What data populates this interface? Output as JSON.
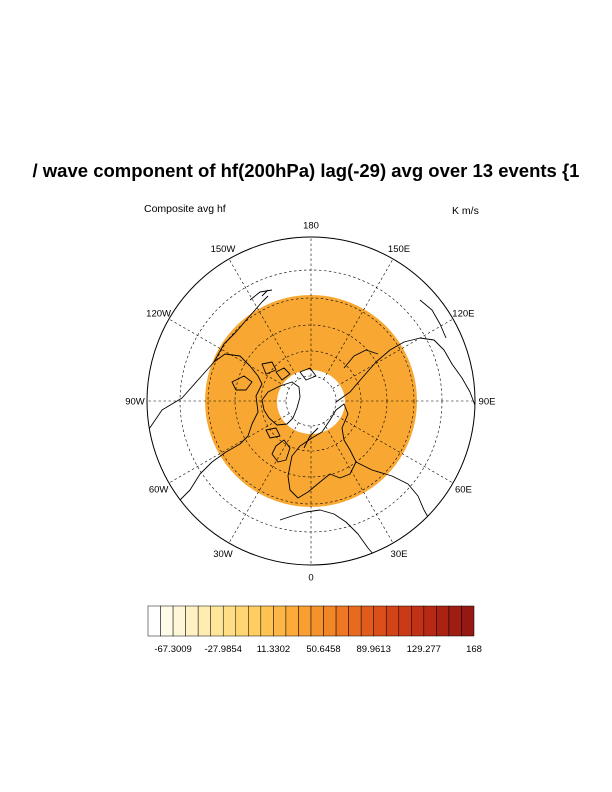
{
  "title": "/ wave component of hf(200hPa) lag(-29) avg over 13 events {1",
  "left_label": "Composite avg hf",
  "right_label": "K m/s",
  "map": {
    "projection": "north polar stereographic",
    "field": "hf",
    "fill_color": "#f8a832",
    "lon_labels": [
      {
        "text": "180",
        "lon": 180
      },
      {
        "text": "150E",
        "lon": 150
      },
      {
        "text": "120E",
        "lon": 120
      },
      {
        "text": "90E",
        "lon": 90
      },
      {
        "text": "60E",
        "lon": 60
      },
      {
        "text": "30E",
        "lon": 30
      },
      {
        "text": "0",
        "lon": 0
      },
      {
        "text": "30W",
        "lon": -30
      },
      {
        "text": "60W",
        "lon": -60
      },
      {
        "text": "90W",
        "lon": -90
      },
      {
        "text": "120W",
        "lon": -120
      },
      {
        "text": "150W",
        "lon": -150
      }
    ]
  },
  "colorbar": {
    "colors": [
      "#ffffff",
      "#fffbe9",
      "#fff6d7",
      "#fff1c4",
      "#ffecb0",
      "#ffe59a",
      "#ffde86",
      "#ffd673",
      "#ffcd62",
      "#ffc353",
      "#feb746",
      "#fcab3b",
      "#f99f32",
      "#f6922c",
      "#f28526",
      "#ed7722",
      "#e76a1f",
      "#e15c1c",
      "#da4f1a",
      "#d24418",
      "#c93a17",
      "#c03116",
      "#b62915",
      "#ab2214",
      "#a01d14",
      "#941813"
    ],
    "tick_labels": [
      "-67.3009",
      "-27.9854",
      "11.3302",
      "50.6458",
      "89.9613",
      "129.277",
      "168"
    ]
  }
}
